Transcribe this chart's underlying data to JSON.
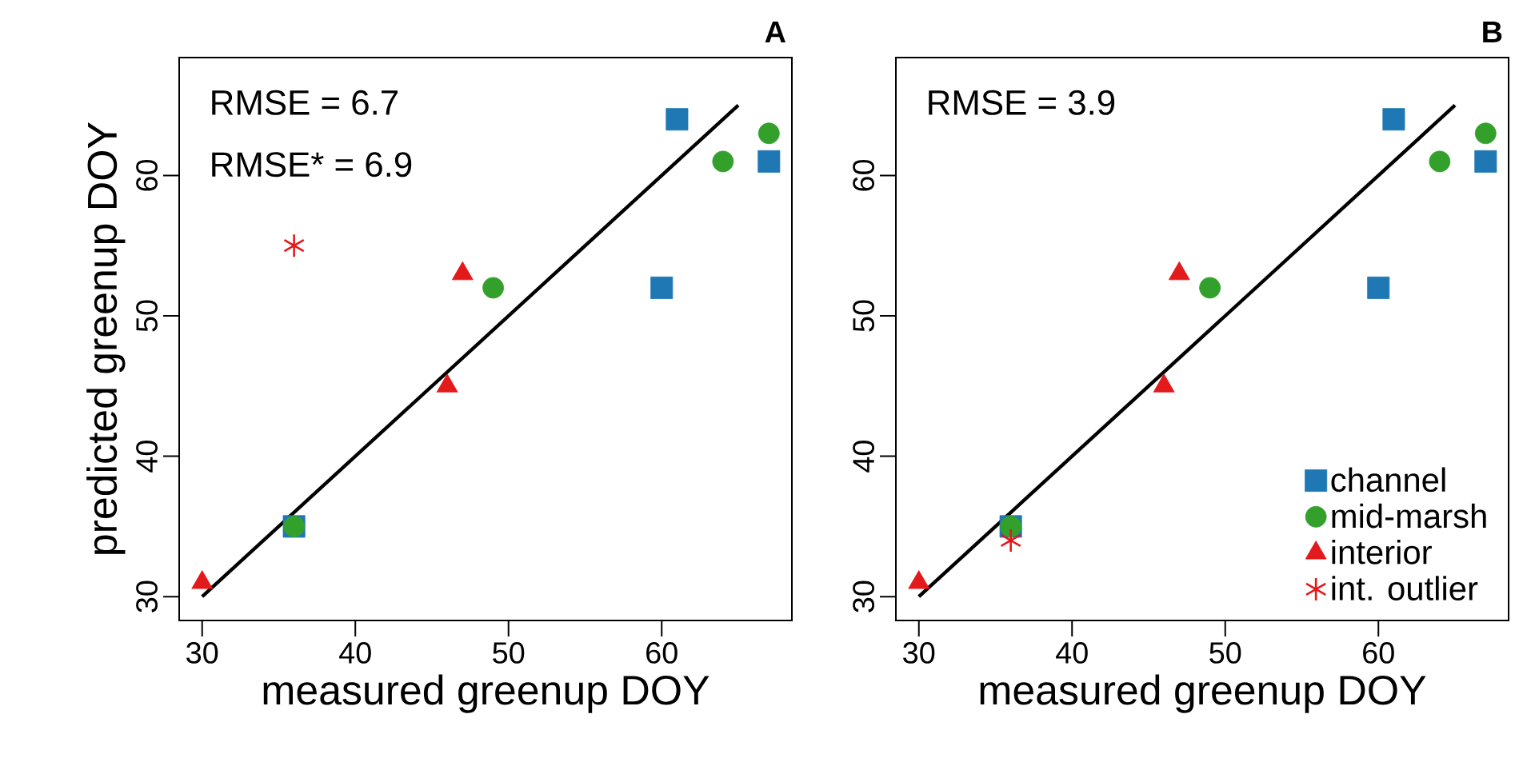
{
  "chart_data": [
    {
      "type": "scatter",
      "title": "A",
      "xlabel": "measured greenup DOY",
      "ylabel": "predicted greenup DOY",
      "xlim": [
        28.5,
        68.5
      ],
      "ylim": [
        28.3,
        68.4
      ],
      "xticks": [
        30,
        40,
        50,
        60
      ],
      "yticks": [
        30,
        40,
        50,
        60
      ],
      "grid": false,
      "legend": false,
      "annotations": [
        "RMSE = 6.7",
        "RMSE* = 6.9"
      ],
      "series": [
        {
          "type": "line",
          "x": [
            30,
            65
          ],
          "values": [
            30,
            65
          ],
          "color": "#000000",
          "marker": "none"
        },
        {
          "x": [
            36,
            61,
            67,
            60
          ],
          "values": [
            35,
            64,
            61,
            52
          ],
          "color": "#1f78b4",
          "marker": "square"
        },
        {
          "x": [
            36,
            49,
            64,
            67
          ],
          "values": [
            35,
            52,
            61,
            63
          ],
          "color": "#33a02c",
          "marker": "circle"
        },
        {
          "x": [
            30,
            46,
            47
          ],
          "values": [
            31,
            45,
            53
          ],
          "color": "#e31a1c",
          "marker": "triangle"
        },
        {
          "x": [
            36
          ],
          "values": [
            55
          ],
          "color": "#e31a1c",
          "marker": "cross"
        }
      ]
    },
    {
      "type": "scatter",
      "title": "B",
      "xlabel": "measured greenup DOY",
      "xlim": [
        28.5,
        68.5
      ],
      "ylim": [
        28.3,
        68.4
      ],
      "xticks": [
        30,
        40,
        50,
        60
      ],
      "yticks": [
        30,
        40,
        50,
        60
      ],
      "grid": false,
      "legend": "bottom right",
      "annotations": [
        "RMSE = 3.9"
      ],
      "series": [
        {
          "type": "line",
          "x": [
            30,
            65
          ],
          "values": [
            30,
            65
          ],
          "color": "#000000",
          "marker": "none"
        },
        {
          "name": "channel",
          "x": [
            36,
            61,
            67,
            60
          ],
          "values": [
            35,
            64,
            61,
            52
          ],
          "color": "#1f78b4",
          "marker": "square"
        },
        {
          "name": "mid-marsh",
          "x": [
            36,
            49,
            64,
            67
          ],
          "values": [
            35,
            52,
            61,
            63
          ],
          "color": "#33a02c",
          "marker": "circle"
        },
        {
          "name": "interior",
          "x": [
            30,
            46,
            47
          ],
          "values": [
            31,
            45,
            53
          ],
          "color": "#e31a1c",
          "marker": "triangle"
        },
        {
          "name": "int. outlier",
          "x": [
            36
          ],
          "values": [
            34
          ],
          "color": "#e31a1c",
          "marker": "cross"
        }
      ]
    }
  ]
}
